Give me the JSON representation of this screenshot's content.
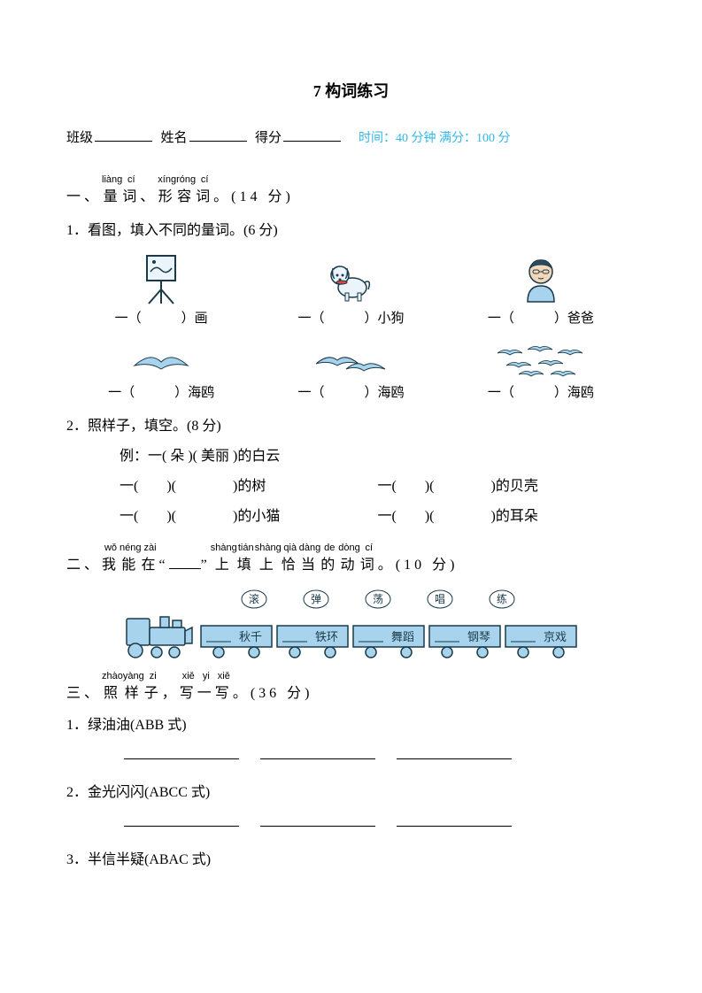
{
  "title": "7  构词练习",
  "header": {
    "class_label": "班级",
    "name_label": "姓名",
    "score_label": "得分",
    "time_info": "时间：40 分钟  满分：100 分"
  },
  "colors": {
    "text": "#000000",
    "accent": "#33b6e6",
    "icon_blue": "#a7d4ec",
    "icon_dark": "#2b4a60",
    "icon_skin": "#f4d6b8",
    "icon_outline": "#1a3a4a",
    "bird_fill": "#a7d4ec"
  },
  "s1": {
    "pinyin": [
      "",
      "liàng",
      "cí",
      "",
      "xíng",
      "róng",
      "cí",
      ""
    ],
    "chars": [
      "一、",
      "量",
      "词",
      "、",
      "形",
      "容",
      "词",
      "。"
    ],
    "points": "(14 分)",
    "q1": {
      "label": "1．看图，填入不同的量词。(6 分)",
      "row1": [
        {
          "icon": "easel",
          "text": "一（　　　）画"
        },
        {
          "icon": "dog",
          "text": "一（　　　）小狗"
        },
        {
          "icon": "dad",
          "text": "一（　　　）爸爸"
        }
      ],
      "row2": [
        {
          "icon": "bird1",
          "text": "一（　　　）海鸥"
        },
        {
          "icon": "bird2",
          "text": "一（　　　）海鸥"
        },
        {
          "icon": "birds",
          "text": "一（　　　）海鸥"
        }
      ]
    },
    "q2": {
      "label": "2．照样子，填空。(8 分)",
      "example": "例：一(  朵  )(  美丽  )的白云",
      "lines": [
        {
          "left": "一(　　)(　　　　)的树",
          "right": "一(　　)(　　　　)的贝壳"
        },
        {
          "left": "一(　　)(　　　　)的小猫",
          "right": "一(　　)(　　　　)的耳朵"
        }
      ]
    }
  },
  "s2": {
    "pinyin": [
      "",
      "wǒ",
      "néng",
      "zài",
      "",
      "",
      "",
      "shàng",
      "tián",
      "shàng",
      "qià",
      "dàng",
      "de",
      "dòng",
      "cí",
      ""
    ],
    "chars": [
      "二、",
      "我",
      "能",
      "在",
      "“",
      "____",
      "”",
      "上",
      "填",
      "上",
      "恰",
      "当",
      "的",
      "动",
      "词",
      "。"
    ],
    "points": "(10 分)",
    "bubbles": [
      "滚",
      "弹",
      "荡",
      "唱",
      "练"
    ],
    "cars": [
      "秋千",
      "铁环",
      "舞蹈",
      "钢琴",
      "京戏"
    ]
  },
  "s3": {
    "pinyin": [
      "",
      "zhào",
      "yàng",
      "zi",
      "",
      "xiě",
      "yi",
      "xiě",
      ""
    ],
    "chars": [
      "三、",
      "照",
      "样",
      "子",
      "，",
      "写",
      "一",
      "写",
      "。"
    ],
    "points": "(36 分)",
    "items": [
      "1．绿油油(ABB 式)",
      "2．金光闪闪(ABCC 式)",
      "3．半信半疑(ABAC 式)"
    ]
  }
}
